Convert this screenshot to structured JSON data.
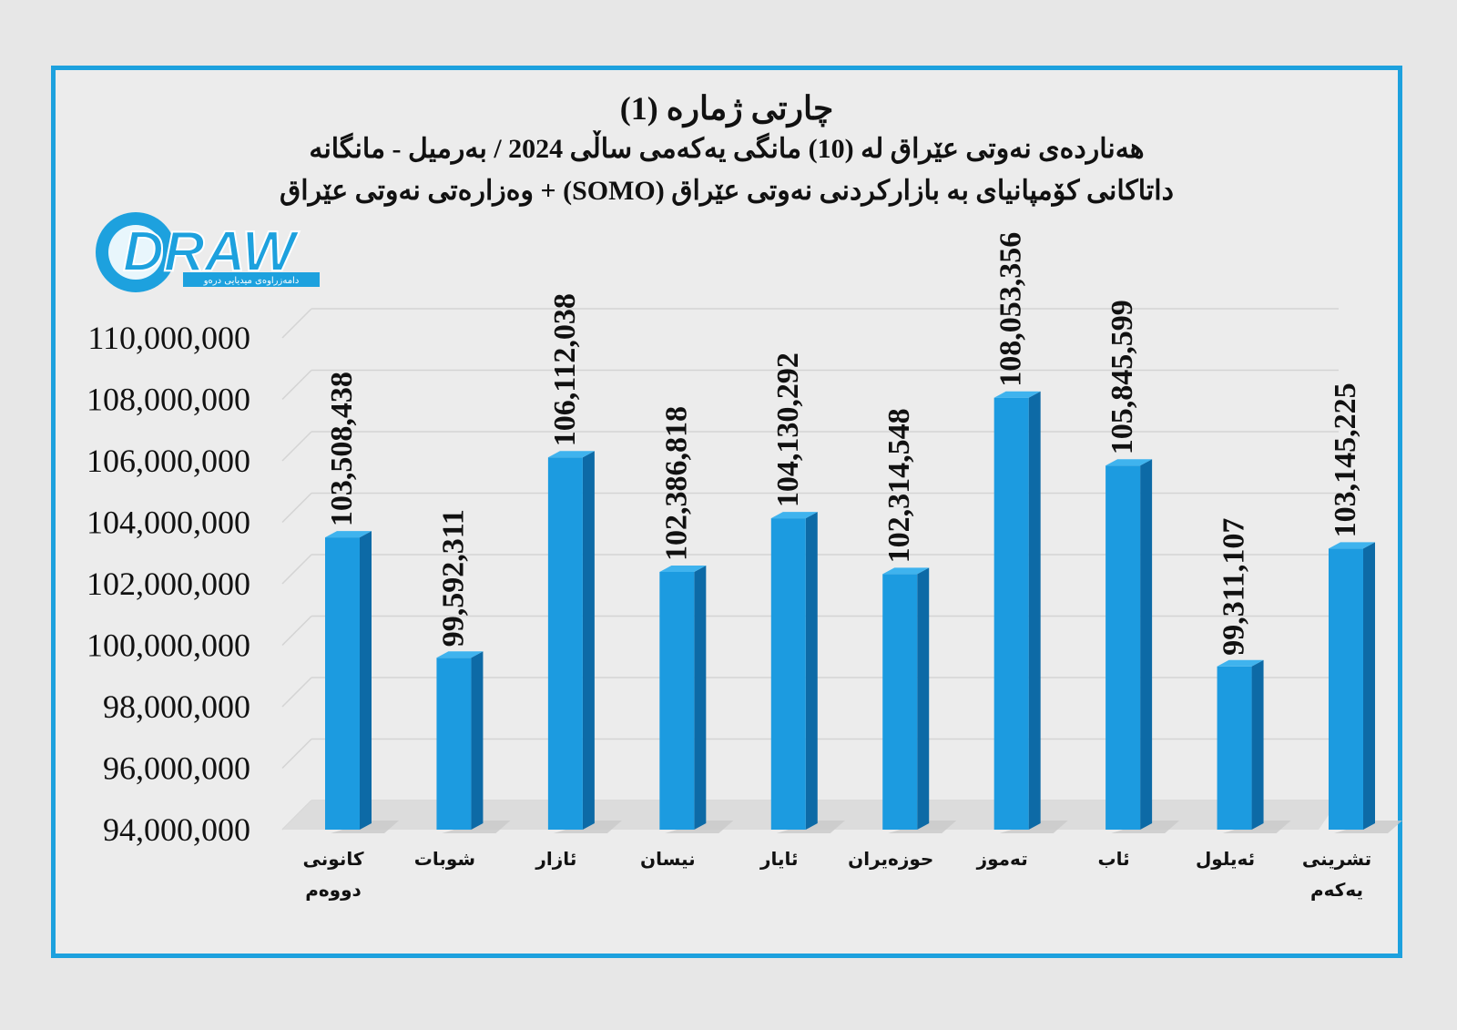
{
  "title": {
    "main": "چارتی ژماره (1)",
    "line1": "هەناردەی نەوتی عێراق لە (10) مانگی یەکەمی ساڵی 2024 / بەرمیل - مانگانە",
    "line2": "داتاکانی کۆمپانیای بە بازارکردنی نەوتی عێراق (SOMO) + وەزارەتی نەوتی عێراق"
  },
  "logo": {
    "text": "DRAW",
    "tagline": "دامەزراوەی میدیایی درەو"
  },
  "colors": {
    "bar": "#1c9be0",
    "bar_side": "#0d6aa6",
    "bar_top": "#3fb3ee",
    "frame": "#1da1de",
    "grid": "#d4d4d4"
  },
  "chart_data": {
    "type": "bar",
    "categories": [
      [
        "کانونی",
        "دووەم"
      ],
      [
        "شوبات"
      ],
      [
        "ئازار"
      ],
      [
        "نیسان"
      ],
      [
        "ئایار"
      ],
      [
        "حوزەیران"
      ],
      [
        "تەموز"
      ],
      [
        "ئاب"
      ],
      [
        "ئەیلول"
      ],
      [
        "تشرینی",
        "یەکەم"
      ]
    ],
    "values": [
      103508438,
      99592311,
      106112038,
      102386818,
      104130292,
      102314548,
      108053356,
      105845599,
      99311107,
      103145225
    ],
    "value_labels": [
      "103,508,438",
      "99,592,311",
      "106,112,038",
      "102,386,818",
      "104,130,292",
      "102,314,548",
      "108,053,356",
      "105,845,599",
      "99,311,107",
      "103,145,225"
    ],
    "yticks": [
      94000000,
      96000000,
      98000000,
      100000000,
      102000000,
      104000000,
      106000000,
      108000000,
      110000000
    ],
    "ytick_labels": [
      "94,000,000",
      "96,000,000",
      "98,000,000",
      "100,000,000",
      "102,000,000",
      "104,000,000",
      "106,000,000",
      "108,000,000",
      "110,000,000"
    ],
    "ylim": [
      94000000,
      110000000
    ],
    "grid": true,
    "legend": false
  }
}
